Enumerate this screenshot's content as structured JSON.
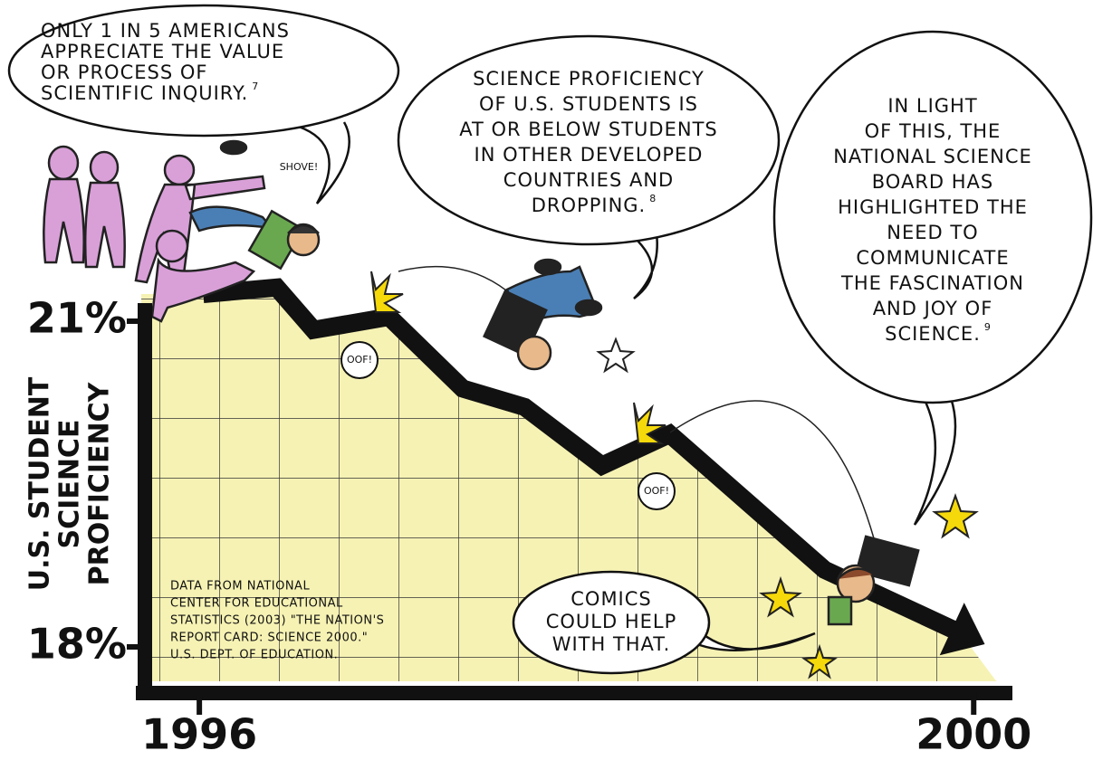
{
  "chart_data": {
    "type": "line",
    "ylabel": [
      "U.S. STUDENT",
      "SCIENCE",
      "PROFICIENCY"
    ],
    "x": [
      1996.02,
      1996.4,
      1996.59,
      1996.98,
      1997.36,
      1997.68,
      1998.08,
      1998.43,
      1999.23,
      1999.93
    ],
    "values": [
      21.25,
      21.31,
      20.92,
      21.04,
      20.38,
      20.21,
      19.67,
      19.96,
      18.71,
      18.13
    ],
    "color": "#111111",
    "area_color": "#f6f2b4",
    "xlim": [
      1995.7,
      2000.2
    ],
    "ylim": [
      17.6,
      21.5
    ],
    "xticks": [
      1996,
      2000
    ],
    "yticks": [
      {
        "value": 21,
        "label": "21%"
      },
      {
        "value": 18,
        "label": "18%"
      }
    ],
    "annotations": [
      {
        "lines": [
          "ONLY 1 IN 5 AMERICANS",
          "APPRECIATE THE VALUE",
          "OR PROCESS OF",
          "SCIENTIFIC INQUIRY."
        ],
        "footnote": "7"
      },
      {
        "lines": [
          "SCIENCE PROFICIENCY",
          "OF U.S. STUDENTS IS",
          "AT OR BELOW STUDENTS",
          "IN OTHER DEVELOPED",
          "COUNTRIES AND",
          "DROPPING."
        ],
        "footnote": "8"
      },
      {
        "lines": [
          "IN LIGHT",
          "OF THIS, THE",
          "NATIONAL SCIENCE",
          "BOARD HAS",
          "HIGHLIGHTED THE",
          "NEED TO",
          "COMMUNICATE",
          "THE FASCINATION",
          "AND JOY OF",
          "SCIENCE."
        ],
        "footnote": "9"
      },
      {
        "lines": [
          "COMICS",
          "COULD HELP",
          "WITH THAT."
        ]
      }
    ],
    "source_note": [
      "DATA FROM NATIONAL",
      "CENTER FOR EDUCATIONAL",
      "STATISTICS (2003) \"THE NATION'S",
      "REPORT CARD: SCIENCE 2000.\"",
      "U.S. DEPT. OF EDUCATION."
    ],
    "sounds": [
      "SHOVE!",
      "OOF!",
      "OOF!"
    ]
  }
}
